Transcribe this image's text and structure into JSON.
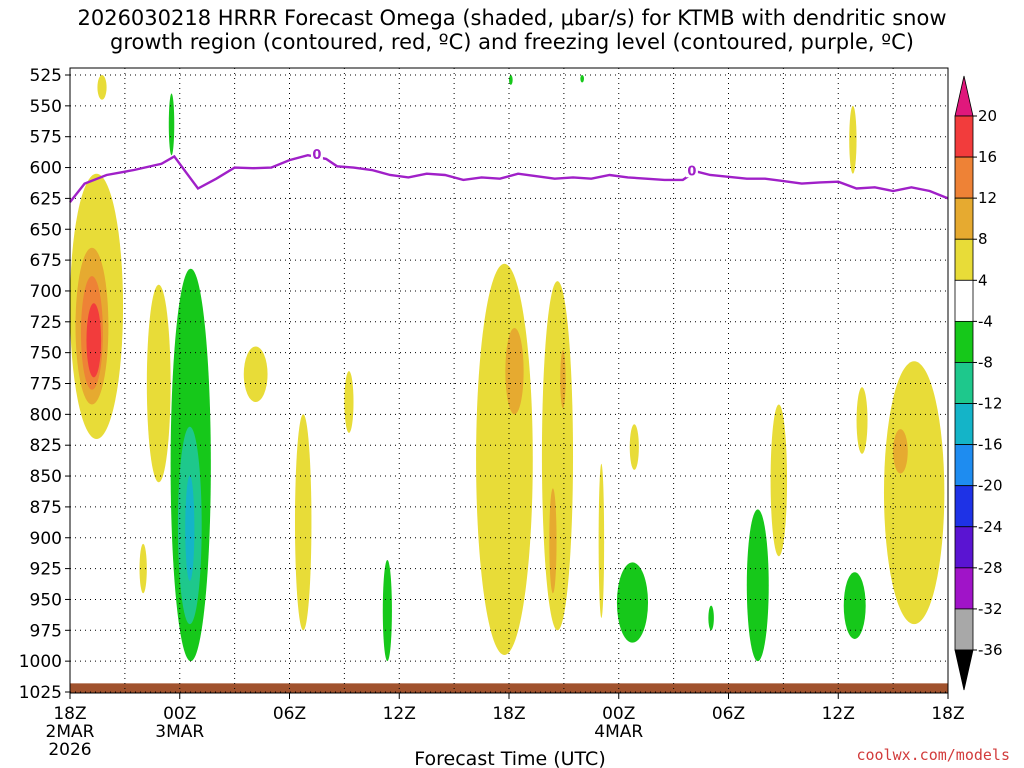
{
  "title": {
    "line1": "2026030218 HRRR Forecast Omega (shaded, μbar/s) for KTMB with dendritic snow",
    "line2": "growth region (contoured, red, ºC) and freezing level (contoured, purple, ºC)"
  },
  "credit": "coolwx.com/models",
  "chart_data": {
    "type": "heatmap",
    "xlabel": "Forecast Time (UTC)",
    "ylabel": "",
    "x_range_hours": [
      0,
      48
    ],
    "y_range_mb": [
      525,
      1025
    ],
    "y_reversed": true,
    "grid": true,
    "y_ticks": [
      "525",
      "550",
      "575",
      "600",
      "625",
      "650",
      "675",
      "700",
      "725",
      "750",
      "775",
      "800",
      "825",
      "850",
      "875",
      "900",
      "925",
      "950",
      "975",
      "1000",
      "1025"
    ],
    "x_ticks": [
      {
        "hour": 0,
        "label": "18Z",
        "date1": "2MAR",
        "date2": "2026"
      },
      {
        "hour": 6,
        "label": "00Z",
        "date1": "3MAR",
        "date2": ""
      },
      {
        "hour": 12,
        "label": "06Z",
        "date1": "",
        "date2": ""
      },
      {
        "hour": 18,
        "label": "12Z",
        "date1": "",
        "date2": ""
      },
      {
        "hour": 24,
        "label": "18Z",
        "date1": "",
        "date2": ""
      },
      {
        "hour": 30,
        "label": "00Z",
        "date1": "4MAR",
        "date2": ""
      },
      {
        "hour": 36,
        "label": "06Z",
        "date1": "",
        "date2": ""
      },
      {
        "hour": 42,
        "label": "12Z",
        "date1": "",
        "date2": ""
      },
      {
        "hour": 48,
        "label": "18Z",
        "date1": "",
        "date2": ""
      }
    ],
    "colorbar": {
      "labels": [
        "20",
        "16",
        "12",
        "8",
        "4",
        "-4",
        "-8",
        "-12",
        "-16",
        "-20",
        "-24",
        "-28",
        "-32",
        "-36"
      ],
      "bins": [
        {
          "min": 20,
          "max": null,
          "color": "#e0187c"
        },
        {
          "min": 16,
          "max": 20,
          "color": "#f23c3c"
        },
        {
          "min": 12,
          "max": 16,
          "color": "#ee8236"
        },
        {
          "min": 8,
          "max": 12,
          "color": "#e6aa30"
        },
        {
          "min": 4,
          "max": 8,
          "color": "#e8dc38"
        },
        {
          "min": -4,
          "max": 4,
          "color": "#ffffff"
        },
        {
          "min": -8,
          "max": -4,
          "color": "#16c81a"
        },
        {
          "min": -12,
          "max": -8,
          "color": "#1ec88c"
        },
        {
          "min": -16,
          "max": -12,
          "color": "#14b4c8"
        },
        {
          "min": -20,
          "max": -16,
          "color": "#1e8cf0"
        },
        {
          "min": -24,
          "max": -20,
          "color": "#1e32e6"
        },
        {
          "min": -28,
          "max": -24,
          "color": "#5a14d2"
        },
        {
          "min": -32,
          "max": -28,
          "color": "#a014c8"
        },
        {
          "min": -36,
          "max": -32,
          "color": "#a8a8a8"
        },
        {
          "min": null,
          "max": -36,
          "color": "#000000"
        }
      ]
    },
    "freezing_level": {
      "label": "0",
      "color": "#a020c8",
      "label_hours": [
        13.5,
        34
      ],
      "points": [
        [
          0,
          628
        ],
        [
          0.8,
          613
        ],
        [
          2,
          606
        ],
        [
          3.5,
          602
        ],
        [
          5,
          597
        ],
        [
          5.7,
          591
        ],
        [
          6.2,
          601
        ],
        [
          7,
          617
        ],
        [
          8,
          609
        ],
        [
          9,
          600
        ],
        [
          10,
          600.5
        ],
        [
          11,
          600
        ],
        [
          12,
          594
        ],
        [
          13,
          590
        ],
        [
          14,
          593
        ],
        [
          14.6,
          599
        ],
        [
          15.5,
          600
        ],
        [
          16.5,
          602
        ],
        [
          17.5,
          606
        ],
        [
          18.5,
          608
        ],
        [
          19.5,
          605
        ],
        [
          20.5,
          606
        ],
        [
          21.5,
          610
        ],
        [
          22.5,
          608
        ],
        [
          23.5,
          609
        ],
        [
          24.5,
          605
        ],
        [
          25.5,
          607
        ],
        [
          26.5,
          609
        ],
        [
          27.5,
          608
        ],
        [
          28.5,
          609
        ],
        [
          29.5,
          606
        ],
        [
          30.5,
          608
        ],
        [
          31.5,
          609
        ],
        [
          32.5,
          610
        ],
        [
          33.5,
          610
        ],
        [
          34.2,
          603
        ],
        [
          35,
          606
        ],
        [
          36,
          607.5
        ],
        [
          37,
          609
        ],
        [
          38,
          609
        ],
        [
          39,
          611
        ],
        [
          40,
          613
        ],
        [
          41,
          612
        ],
        [
          42,
          611.5
        ],
        [
          43,
          617
        ],
        [
          44,
          616
        ],
        [
          45,
          619
        ],
        [
          46,
          616
        ],
        [
          47,
          619
        ],
        [
          48,
          625
        ]
      ]
    },
    "surface": {
      "color": "#a0522d",
      "note_mb": 1018
    },
    "omega_regions": [
      {
        "value": 6,
        "hours": [
          0,
          2.9
        ],
        "mb": [
          605,
          820
        ]
      },
      {
        "value": 10,
        "hours": [
          0.3,
          2.1
        ],
        "mb": [
          665,
          792
        ]
      },
      {
        "value": 14,
        "hours": [
          0.6,
          1.8
        ],
        "mb": [
          688,
          780
        ]
      },
      {
        "value": 18,
        "hours": [
          0.9,
          1.7
        ],
        "mb": [
          710,
          770
        ]
      },
      {
        "value": 6,
        "hours": [
          4.2,
          5.5
        ],
        "mb": [
          695,
          855
        ]
      },
      {
        "value": 6,
        "hours": [
          9.5,
          10.8
        ],
        "mb": [
          745,
          790
        ]
      },
      {
        "value": 6,
        "hours": [
          12.3,
          13.2
        ],
        "mb": [
          800,
          975
        ]
      },
      {
        "value": 6,
        "hours": [
          15.0,
          15.5
        ],
        "mb": [
          765,
          815
        ]
      },
      {
        "value": 6,
        "hours": [
          3.8,
          4.2
        ],
        "mb": [
          905,
          945
        ]
      },
      {
        "value": 6,
        "hours": [
          22.2,
          25.3
        ],
        "mb": [
          678,
          995
        ]
      },
      {
        "value": 10,
        "hours": [
          23.8,
          24.8
        ],
        "mb": [
          730,
          800
        ]
      },
      {
        "value": 6,
        "hours": [
          25.8,
          27.5
        ],
        "mb": [
          692,
          975
        ]
      },
      {
        "value": 10,
        "hours": [
          26.8,
          27.1
        ],
        "mb": [
          748,
          795
        ]
      },
      {
        "value": 10,
        "hours": [
          26.2,
          26.6
        ],
        "mb": [
          860,
          945
        ]
      },
      {
        "value": 6,
        "hours": [
          28.9,
          29.2
        ],
        "mb": [
          840,
          965
        ]
      },
      {
        "value": 6,
        "hours": [
          30.6,
          31.1
        ],
        "mb": [
          808,
          845
        ]
      },
      {
        "value": 6,
        "hours": [
          38.3,
          39.2
        ],
        "mb": [
          792,
          915
        ]
      },
      {
        "value": 6,
        "hours": [
          44.5,
          47.8
        ],
        "mb": [
          757,
          970
        ]
      },
      {
        "value": 10,
        "hours": [
          45.0,
          45.8
        ],
        "mb": [
          812,
          848
        ]
      },
      {
        "value": 6,
        "hours": [
          43.0,
          43.6
        ],
        "mb": [
          778,
          832
        ]
      },
      {
        "value": 6,
        "hours": [
          42.6,
          43.0
        ],
        "mb": [
          550,
          605
        ]
      },
      {
        "value": 6,
        "hours": [
          1.5,
          2.0
        ],
        "mb": [
          525,
          545
        ]
      },
      {
        "value": -6,
        "hours": [
          5.5,
          7.7
        ],
        "mb": [
          682,
          1000
        ]
      },
      {
        "value": -10,
        "hours": [
          5.9,
          7.2
        ],
        "mb": [
          810,
          970
        ]
      },
      {
        "value": -14,
        "hours": [
          6.3,
          6.8
        ],
        "mb": [
          850,
          935
        ]
      },
      {
        "value": -6,
        "hours": [
          5.4,
          5.7
        ],
        "mb": [
          540,
          590
        ]
      },
      {
        "value": -6,
        "hours": [
          17.1,
          17.6
        ],
        "mb": [
          918,
          1000
        ]
      },
      {
        "value": -6,
        "hours": [
          29.9,
          31.6
        ],
        "mb": [
          920,
          985
        ]
      },
      {
        "value": -6,
        "hours": [
          34.9,
          35.2
        ],
        "mb": [
          955,
          975
        ]
      },
      {
        "value": -6,
        "hours": [
          37.0,
          38.2
        ],
        "mb": [
          877,
          1000
        ]
      },
      {
        "value": -6,
        "hours": [
          42.3,
          43.5
        ],
        "mb": [
          928,
          982
        ]
      },
      {
        "value": -6,
        "hours": [
          24.0,
          24.2
        ],
        "mb": [
          525,
          533
        ]
      },
      {
        "value": -6,
        "hours": [
          27.9,
          28.1
        ],
        "mb": [
          525,
          531
        ]
      }
    ]
  }
}
